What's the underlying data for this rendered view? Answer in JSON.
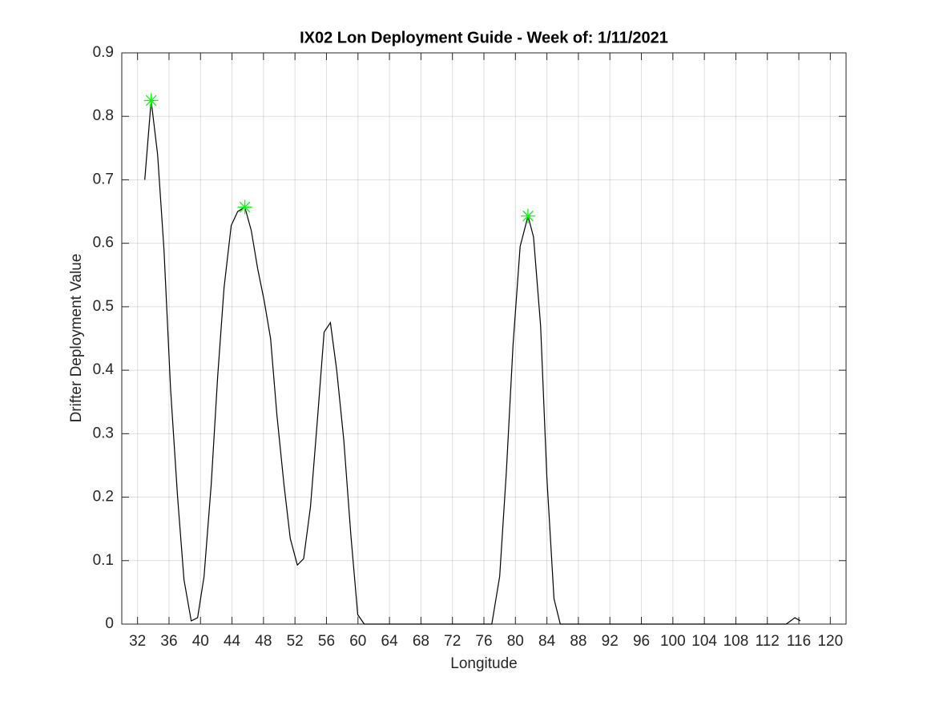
{
  "chart_data": {
    "type": "line",
    "title": "IX02 Lon Deployment Guide - Week of: 1/11/2021",
    "xlabel": "Longitude",
    "ylabel": "Drifter Deployment Value",
    "xlim": [
      30,
      122
    ],
    "ylim": [
      0,
      0.9
    ],
    "xticks": [
      32,
      36,
      40,
      44,
      48,
      52,
      56,
      60,
      64,
      68,
      72,
      76,
      80,
      84,
      88,
      92,
      96,
      100,
      104,
      108,
      112,
      116,
      120
    ],
    "yticks": [
      0,
      0.1,
      0.2,
      0.3,
      0.4,
      0.5,
      0.6,
      0.7,
      0.8,
      0.9
    ],
    "grid": true,
    "series": [
      {
        "color": "#000000",
        "marker": "none",
        "x": [
          32.92,
          33.73,
          34.55,
          35.36,
          36.2,
          37.09,
          37.9,
          38.82,
          39.63,
          40.45,
          41.36,
          42.18,
          42.99,
          43.9,
          44.72,
          45.63,
          46.45,
          47.26,
          48.08,
          48.9,
          49.7,
          50.6,
          51.4,
          52.3,
          53.1,
          53.97,
          54.9,
          55.7,
          56.5,
          57.3,
          58.2,
          59.1,
          59.97,
          60.8,
          77.0,
          78.0,
          78.85,
          79.7,
          80.6,
          81.6,
          82.3,
          83.2,
          84.0,
          84.9,
          85.7,
          114.4,
          115.5,
          116.2
        ],
        "values": [
          0.7,
          0.825,
          0.74,
          0.59,
          0.37,
          0.2,
          0.07,
          0.005,
          0.01,
          0.075,
          0.22,
          0.39,
          0.53,
          0.628,
          0.65,
          0.657,
          0.62,
          0.56,
          0.51,
          0.45,
          0.33,
          0.22,
          0.135,
          0.093,
          0.103,
          0.185,
          0.33,
          0.46,
          0.475,
          0.4,
          0.29,
          0.14,
          0.015,
          0,
          0,
          0.075,
          0.24,
          0.44,
          0.595,
          0.643,
          0.61,
          0.47,
          0.23,
          0.04,
          0,
          0,
          0.01,
          0.005
        ]
      },
      {
        "color": "#00ff00",
        "marker": "star",
        "x": [
          33.73,
          45.63,
          81.6
        ],
        "values": [
          0.825,
          0.657,
          0.643
        ]
      }
    ]
  }
}
